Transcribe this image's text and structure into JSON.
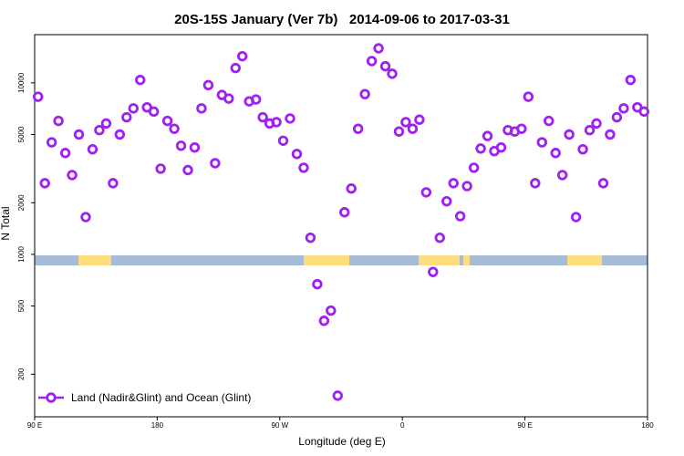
{
  "chart_data": {
    "type": "scatter",
    "title": "20S-15S January (Ver 7b)   2014-09-06 to 2017-03-31",
    "x_label": "Longitude (deg E)",
    "y_label": "N Total",
    "log_y": true,
    "xlim": [
      90,
      540
    ],
    "ylim": [
      113,
      19100
    ],
    "xticks": [
      {
        "value": 90,
        "label": "90 E"
      },
      180,
      {
        "value": 270,
        "label": "90 W"
      },
      {
        "value": 360,
        "label": "0"
      },
      {
        "value": 450,
        "label": "90 E"
      },
      {
        "value": 540,
        "label": "180"
      }
    ],
    "yticks": [
      200,
      500,
      1000,
      2000,
      5000,
      10000
    ],
    "legend_position": "bottom-left",
    "series": [
      {
        "name": "Land (Nadir&Glint) and Ocean (Glint)",
        "color": "#a020f0",
        "x": [
          92.5,
          97.5,
          102.5,
          107.5,
          112.5,
          117.5,
          122.5,
          127.5,
          132.5,
          137.5,
          142.5,
          147.5,
          152.5,
          157.5,
          162.5,
          167.5,
          172.5,
          177.5,
          182.5,
          187.5,
          192.5,
          197.5,
          202.5,
          207.5,
          212.5,
          217.5,
          222.5,
          227.5,
          232.5,
          237.5,
          242.5,
          247.5,
          252.5,
          257.5,
          262.5,
          267.5,
          272.5,
          277.5,
          282.5,
          287.5,
          292.5,
          297.5,
          302.5,
          307.5,
          312.5,
          317.5,
          322.5,
          327.5,
          332.5,
          337.5,
          342.5,
          347.5,
          352.5,
          357.5,
          362.5,
          367.5,
          372.5,
          377.5,
          382.5,
          387.5,
          392.5,
          397.5,
          402.5,
          407.5,
          412.5,
          417.5,
          422.5,
          427.5,
          432.5,
          437.5,
          442.5,
          447.5,
          452.5,
          457.5,
          462.5,
          467.5,
          472.5,
          477.5,
          482.5,
          487.5,
          492.5,
          497.5,
          502.5,
          507.5,
          512.5,
          517.5,
          522.5,
          527.5,
          532.5,
          537.5
        ],
        "values": [
          8300,
          2600,
          4500,
          6000,
          3900,
          2900,
          5000,
          1650,
          4100,
          5300,
          5800,
          2600,
          5000,
          6300,
          7100,
          10400,
          7200,
          6800,
          3160,
          6000,
          5400,
          4300,
          3100,
          4200,
          7100,
          9700,
          3400,
          8500,
          8100,
          12200,
          14300,
          7800,
          8000,
          6300,
          5800,
          5900,
          4600,
          6200,
          3850,
          3200,
          1250,
          670,
          410,
          470,
          150,
          1760,
          2420,
          5400,
          8600,
          13400,
          15900,
          12500,
          11300,
          5200,
          5900,
          5400,
          6100,
          2300,
          790,
          1250,
          2040,
          2600,
          1670,
          2500,
          3200,
          4140,
          4900,
          4000,
          4200,
          5300,
          5200,
          5400,
          8300,
          2600,
          4500,
          6000,
          3900,
          2900,
          5000,
          1650,
          4100,
          5300,
          5800,
          2600,
          5000,
          6300,
          7100,
          10400,
          7200,
          6800
        ]
      }
    ]
  }
}
